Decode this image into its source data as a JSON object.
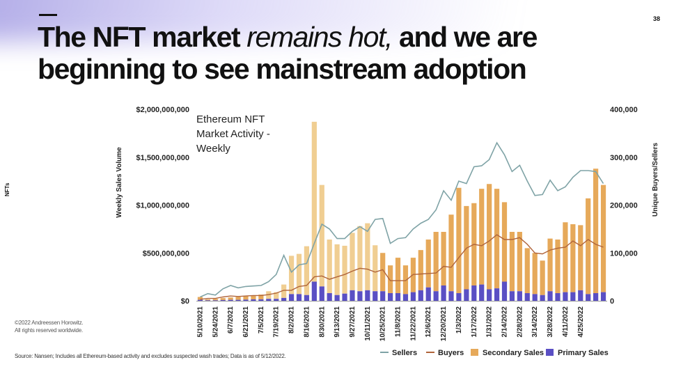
{
  "slide": {
    "page_number": "38",
    "title_bold_1": "The NFT market ",
    "title_italic": "remains hot,",
    "title_bold_2": " and we are beginning to see mainstream adoption",
    "section_label": "NFTs",
    "copyright_line1": "©2022 Andreessen Horowitz.",
    "copyright_line2": "All rights reserved worldwide.",
    "source": "Source: Nansen; Includes all Ethereum-based activity and excludes suspected wash trades; Data is as of 5/12/2022."
  },
  "colors": {
    "secondary": "#E6A95A",
    "secondary_light": "#F0CE92",
    "primary": "#5A4FC4",
    "sellers": "#7FA3A6",
    "buyers": "#B0643A",
    "axis_text": "#222222"
  },
  "chart_data": {
    "type": "bar",
    "title": "Ethereum NFT Market Activity - Weekly",
    "ylabel_left": "Weekly Sales Volume",
    "ylabel_right": "Unique Buyers/Sellers",
    "ylim_left": [
      0,
      2000000000
    ],
    "ylim_right": [
      0,
      400000
    ],
    "yticks_left": [
      "$0",
      "$500,000,000",
      "$1,000,000,000",
      "$1,500,000,000",
      "$2,000,000,000"
    ],
    "yticks_right": [
      "0",
      "100,000",
      "200,000",
      "300,000",
      "400,000"
    ],
    "x_tick_labels": [
      "5/10/2021",
      "5/24/2021",
      "6/7/2021",
      "6/21/2021",
      "7/5/2021",
      "7/19/2021",
      "8/2/2021",
      "8/16/2021",
      "8/30/2021",
      "9/13/2021",
      "9/27/2021",
      "10/11/2021",
      "10/25/2021",
      "11/8/2021",
      "11/22/2021",
      "12/6/2021",
      "12/20/2021",
      "1/3/2022",
      "1/17/2022",
      "1/31/2022",
      "2/14/2022",
      "2/28/2022",
      "3/14/2022",
      "3/28/2022",
      "4/11/2022",
      "4/25/2022"
    ],
    "legend": [
      "Sellers",
      "Buyers",
      "Secondary Sales",
      "Primary Sales"
    ],
    "legend_position": "bottom",
    "grid": false,
    "series": [
      {
        "name": "Secondary Sales",
        "kind": "stacked-bar",
        "values": [
          30,
          10,
          15,
          20,
          25,
          30,
          35,
          40,
          50,
          80,
          70,
          140,
          400,
          420,
          510,
          1670,
          1060,
          560,
          530,
          500,
          600,
          680,
          700,
          480,
          400,
          290,
          370,
          300,
          360,
          420,
          500,
          620,
          560,
          800,
          1100,
          870,
          860,
          1000,
          1100,
          1040,
          830,
          620,
          620,
          470,
          430,
          360,
          550,
          560,
          730,
          710,
          680,
          1000,
          1300,
          1120
        ]
      },
      {
        "name": "Primary Sales",
        "kind": "stacked-bar",
        "values": [
          10,
          5,
          5,
          8,
          10,
          10,
          12,
          15,
          15,
          20,
          20,
          30,
          70,
          70,
          60,
          200,
          150,
          80,
          60,
          75,
          110,
          100,
          110,
          100,
          100,
          80,
          80,
          70,
          90,
          110,
          140,
          100,
          160,
          100,
          80,
          120,
          160,
          170,
          120,
          130,
          200,
          100,
          100,
          80,
          70,
          60,
          100,
          80,
          90,
          90,
          110,
          70,
          80,
          90
        ]
      },
      {
        "name": "Sellers",
        "kind": "line",
        "axis": "right",
        "values": [
          8000,
          15000,
          12000,
          25000,
          32000,
          27000,
          30000,
          31000,
          32000,
          40000,
          55000,
          95000,
          60000,
          75000,
          78000,
          120000,
          160000,
          150000,
          130000,
          130000,
          145000,
          155000,
          145000,
          170000,
          172000,
          120000,
          130000,
          132000,
          150000,
          162000,
          170000,
          190000,
          230000,
          210000,
          250000,
          245000,
          280000,
          282000,
          295000,
          330000,
          305000,
          270000,
          283000,
          250000,
          220000,
          222000,
          252000,
          230000,
          238000,
          258000,
          272000,
          272000,
          270000,
          245000
        ]
      },
      {
        "name": "Buyers",
        "kind": "line",
        "axis": "right",
        "values": [
          3000,
          5000,
          5000,
          8000,
          10000,
          9000,
          10000,
          11000,
          11000,
          13000,
          16000,
          22000,
          22000,
          30000,
          32000,
          50000,
          52000,
          45000,
          50000,
          55000,
          62000,
          68000,
          66000,
          60000,
          65000,
          42000,
          42000,
          42000,
          55000,
          56000,
          57000,
          58000,
          72000,
          70000,
          90000,
          110000,
          118000,
          115000,
          125000,
          138000,
          128000,
          128000,
          132000,
          118000,
          100000,
          98000,
          106000,
          110000,
          112000,
          125000,
          115000,
          128000,
          118000,
          112000
        ]
      }
    ]
  }
}
